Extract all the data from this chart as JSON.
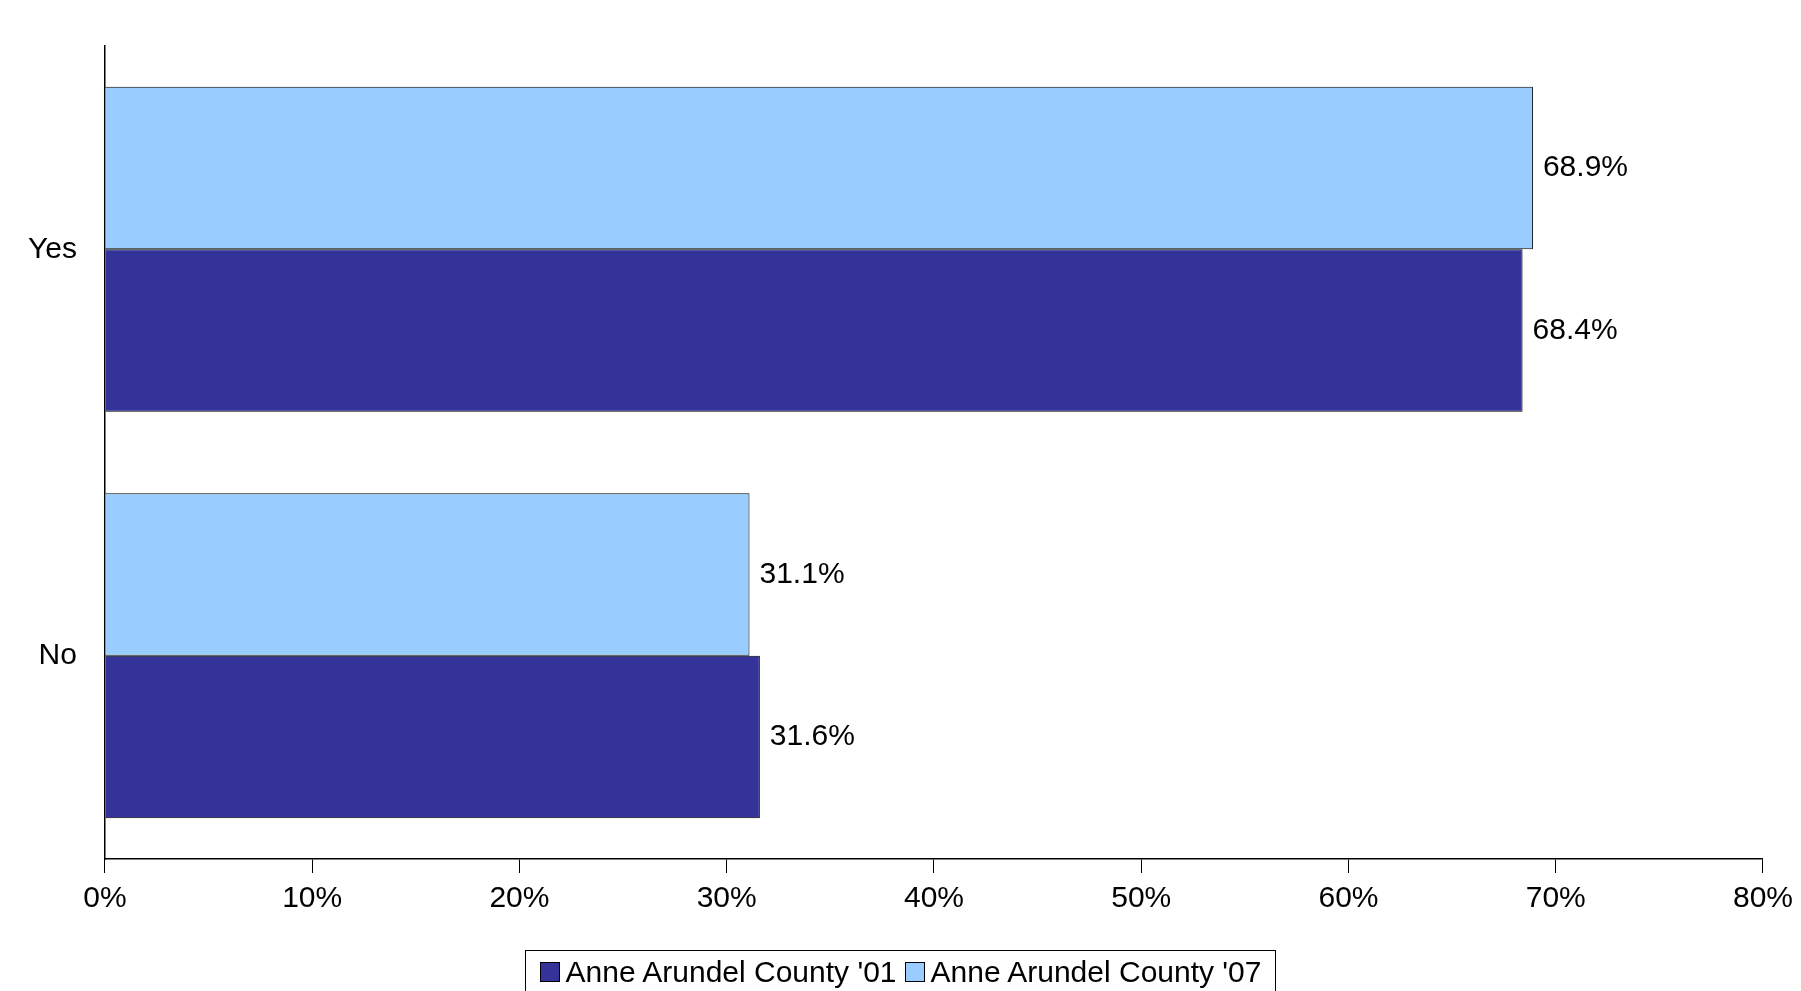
{
  "chart_data": {
    "type": "bar",
    "orientation": "horizontal",
    "categories": [
      "Yes",
      "No"
    ],
    "series": [
      {
        "name": "Anne Arundel County '01",
        "color": "#333399",
        "values": [
          68.4,
          31.6
        ],
        "value_labels": [
          "68.4%",
          "31.6%"
        ]
      },
      {
        "name": "Anne Arundel County '07",
        "color": "#99ccff",
        "values": [
          68.9,
          31.1
        ],
        "value_labels": [
          "68.9%",
          "31.1%"
        ]
      }
    ],
    "xlim": [
      0,
      80
    ],
    "xticks": [
      {
        "value": 0,
        "label": "0%"
      },
      {
        "value": 10,
        "label": "10%"
      },
      {
        "value": 20,
        "label": "20%"
      },
      {
        "value": 30,
        "label": "30%"
      },
      {
        "value": 40,
        "label": "40%"
      },
      {
        "value": 50,
        "label": "50%"
      },
      {
        "value": 60,
        "label": "60%"
      },
      {
        "value": 70,
        "label": "70%"
      },
      {
        "value": 80,
        "label": "80%"
      }
    ],
    "grid": false,
    "legend": "bottom"
  }
}
